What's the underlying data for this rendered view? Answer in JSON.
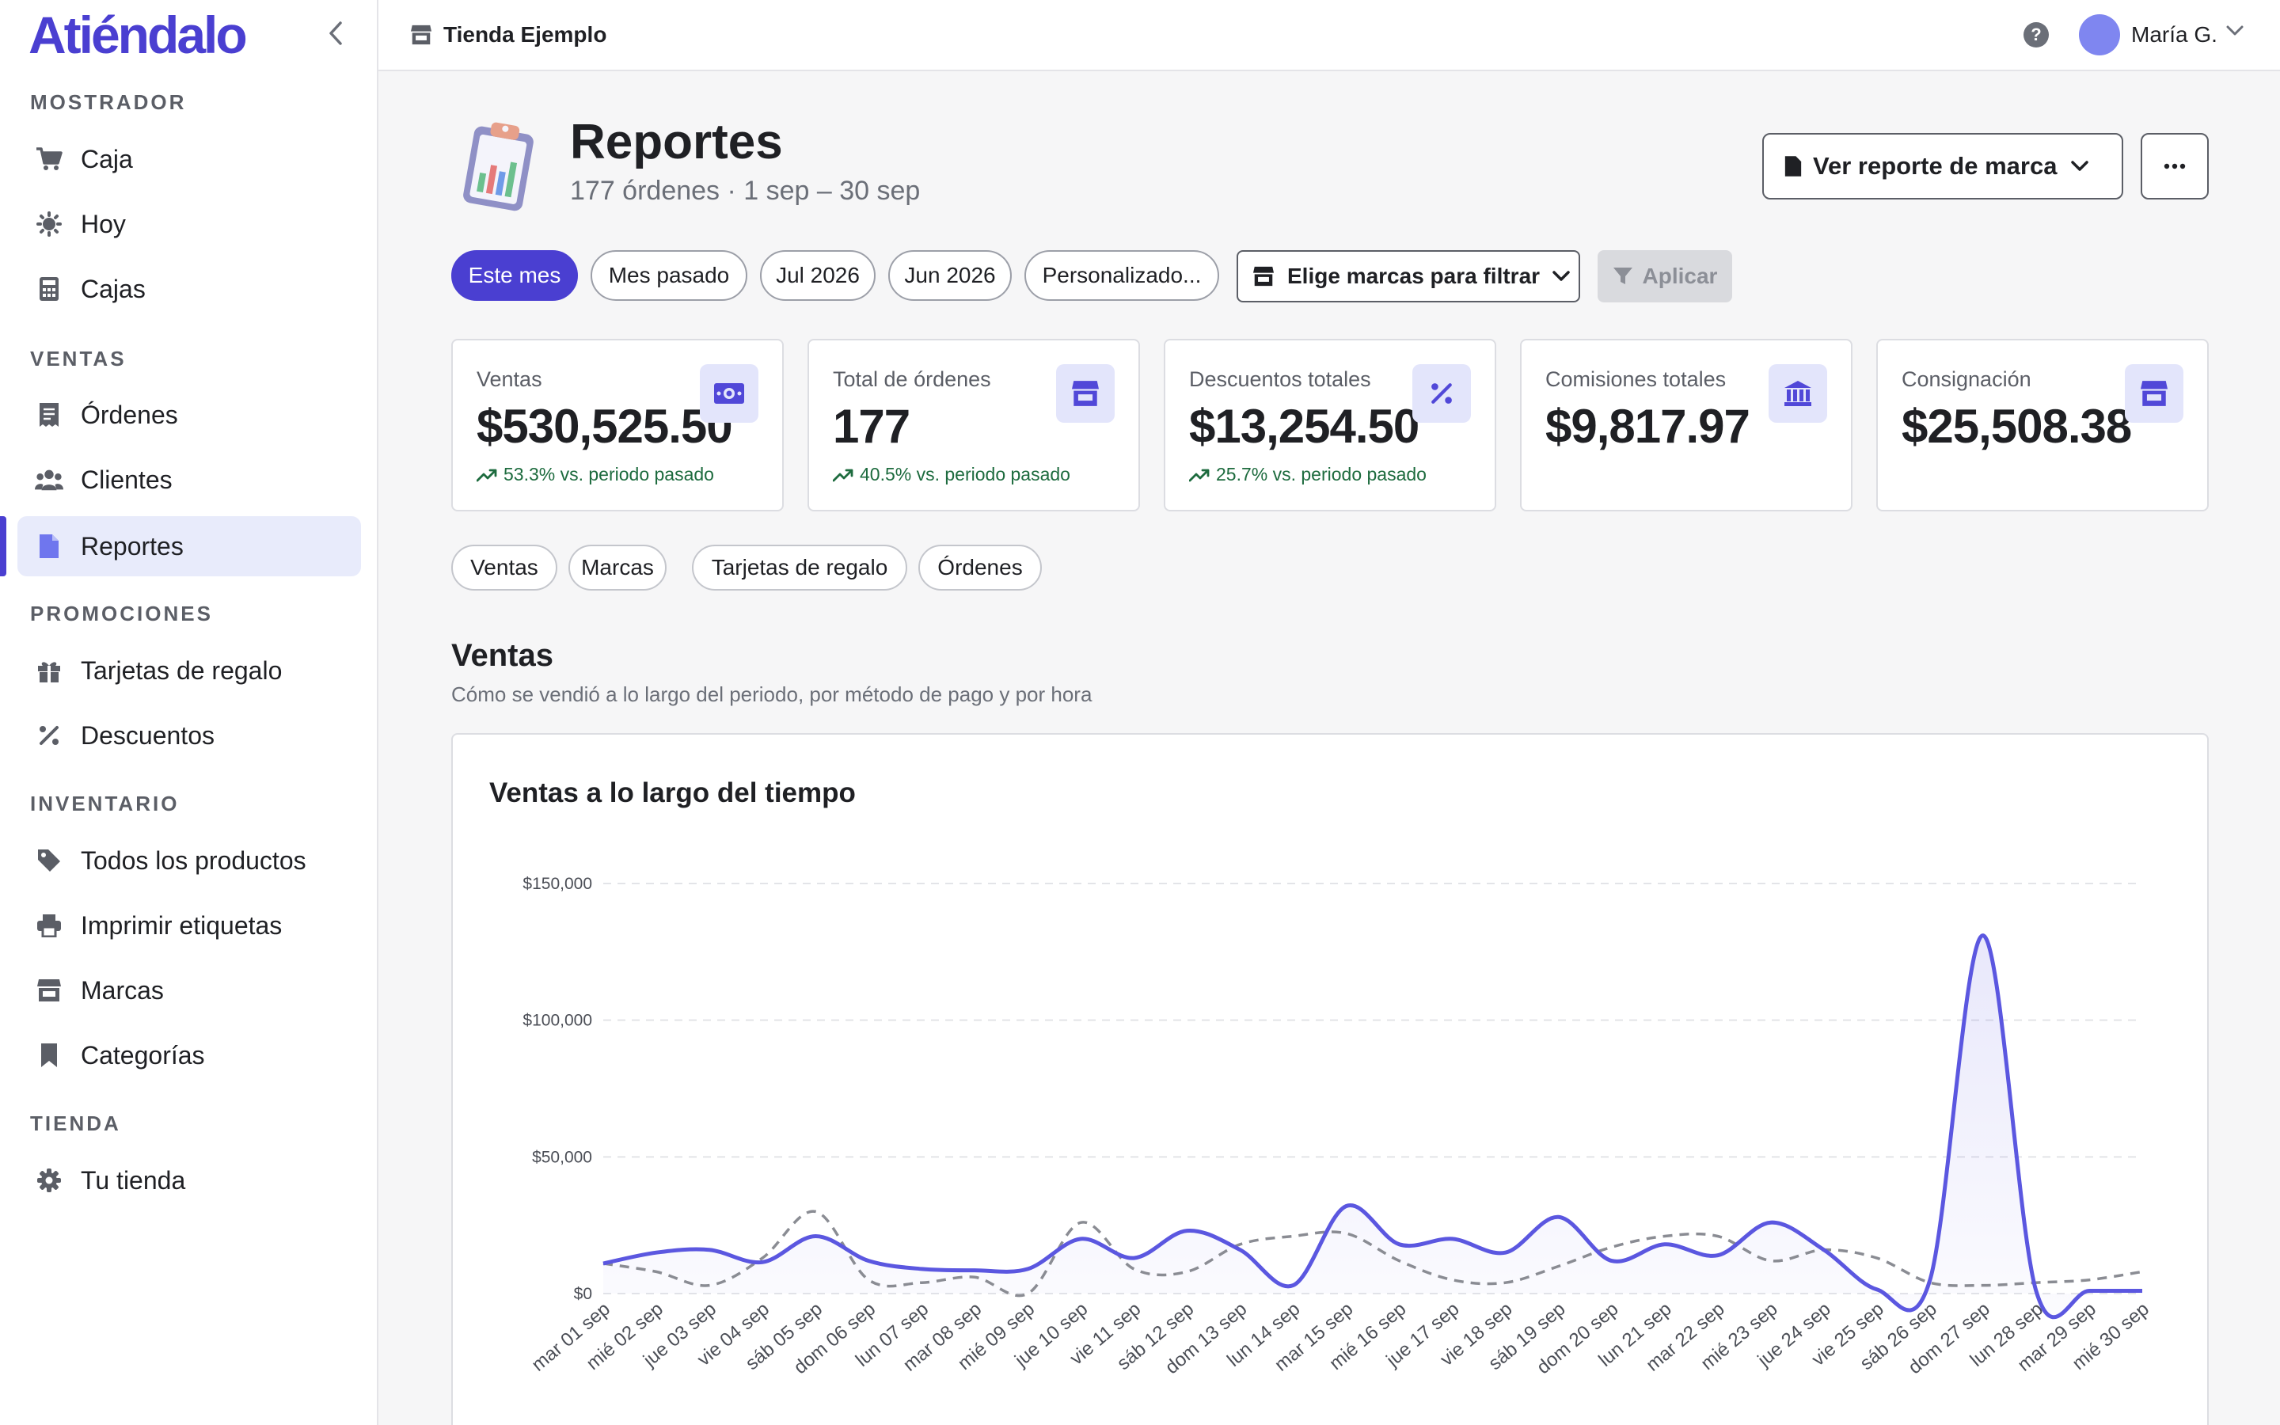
{
  "app": {
    "logo": "Atiéndalo"
  },
  "sidebar": {
    "sections": [
      {
        "title": "MOSTRADOR",
        "items": [
          {
            "label": "Caja",
            "icon": "cart-icon"
          },
          {
            "label": "Hoy",
            "icon": "sun-icon"
          },
          {
            "label": "Cajas",
            "icon": "calculator-icon"
          }
        ]
      },
      {
        "title": "VENTAS",
        "items": [
          {
            "label": "Órdenes",
            "icon": "receipt-icon"
          },
          {
            "label": "Clientes",
            "icon": "users-icon"
          },
          {
            "label": "Reportes",
            "icon": "file-icon",
            "active": true
          }
        ]
      },
      {
        "title": "PROMOCIONES",
        "items": [
          {
            "label": "Tarjetas de regalo",
            "icon": "gift-icon"
          },
          {
            "label": "Descuentos",
            "icon": "percent-icon"
          }
        ]
      },
      {
        "title": "INVENTARIO",
        "items": [
          {
            "label": "Todos los productos",
            "icon": "tag-icon"
          },
          {
            "label": "Imprimir etiquetas",
            "icon": "printer-icon"
          },
          {
            "label": "Marcas",
            "icon": "store-icon"
          },
          {
            "label": "Categorías",
            "icon": "bookmark-icon"
          }
        ]
      },
      {
        "title": "TIENDA",
        "items": [
          {
            "label": "Tu tienda",
            "icon": "gear-icon"
          }
        ]
      }
    ]
  },
  "topbar": {
    "store_name": "Tienda Ejemplo",
    "help": "?",
    "user_name": "María G."
  },
  "header": {
    "title": "Reportes",
    "subtitle": "177 órdenes · 1 sep – 30 sep",
    "brand_report_label": "Ver reporte de marca",
    "more_label": "···"
  },
  "filters": {
    "chips": [
      "Este mes",
      "Mes pasado",
      "Jul 2026",
      "Jun 2026",
      "Personalizado..."
    ],
    "active_chip": "Este mes",
    "brand_filter_label": "Elige marcas para filtrar",
    "apply_label": "Aplicar"
  },
  "kpis": [
    {
      "label": "Ventas",
      "value": "$530,525.50",
      "delta": "53.3% vs. periodo pasado",
      "icon": "cash-icon"
    },
    {
      "label": "Total de órdenes",
      "value": "177",
      "delta": "40.5% vs. periodo pasado",
      "icon": "store-icon"
    },
    {
      "label": "Descuentos totales",
      "value": "$13,254.50",
      "delta": "25.7% vs. periodo pasado",
      "icon": "percent-icon"
    },
    {
      "label": "Comisiones totales",
      "value": "$9,817.97",
      "delta": "",
      "icon": "bank-icon"
    },
    {
      "label": "Consignación",
      "value": "$25,508.38",
      "delta": "",
      "icon": "store-icon"
    }
  ],
  "report_tabs": [
    "Ventas",
    "Marcas",
    "Tarjetas de regalo",
    "Órdenes"
  ],
  "section": {
    "title": "Ventas",
    "subtitle": "Cómo se vendió a lo largo del periodo, por método de pago y por hora"
  },
  "colors": {
    "accent": "#4a3fd1",
    "line": "#5b57e0",
    "previous": "#8a8c93",
    "positive": "#1d6b3e"
  },
  "chart_data": {
    "type": "line",
    "title": "Ventas a lo largo del tiempo",
    "x": [
      "mar 01 sep",
      "mié 02 sep",
      "jue 03 sep",
      "vie 04 sep",
      "sáb 05 sep",
      "dom 06 sep",
      "lun 07 sep",
      "mar 08 sep",
      "mié 09 sep",
      "jue 10 sep",
      "vie 11 sep",
      "sáb 12 sep",
      "dom 13 sep",
      "lun 14 sep",
      "mar 15 sep",
      "mié 16 sep",
      "jue 17 sep",
      "vie 18 sep",
      "sáb 19 sep",
      "dom 20 sep",
      "lun 21 sep",
      "mar 22 sep",
      "mié 23 sep",
      "jue 24 sep",
      "vie 25 sep",
      "sáb 26 sep",
      "dom 27 sep",
      "lun 28 sep",
      "mar 29 sep",
      "mié 30 sep"
    ],
    "yticks": [
      "$0",
      "$50,000",
      "$100,000",
      "$150,000"
    ],
    "ylim": [
      0,
      150000
    ],
    "grid": true,
    "series": [
      {
        "style": "solid-area",
        "values": [
          11000,
          15000,
          16000,
          11500,
          21000,
          12000,
          9000,
          8500,
          9000,
          20000,
          13000,
          23000,
          16000,
          3000,
          32000,
          18000,
          20000,
          15000,
          28000,
          12000,
          18000,
          14000,
          26000,
          16000,
          1500,
          5000,
          131000,
          1000,
          1000,
          1000
        ]
      },
      {
        "style": "dashed",
        "values": [
          11000,
          8000,
          3000,
          13000,
          30000,
          5000,
          4000,
          6000,
          0,
          26000,
          9000,
          8000,
          18000,
          21000,
          22000,
          12000,
          5000,
          4000,
          10000,
          17000,
          21000,
          21000,
          12000,
          16000,
          13000,
          4000,
          3000,
          4000,
          5000,
          8000
        ]
      }
    ]
  }
}
